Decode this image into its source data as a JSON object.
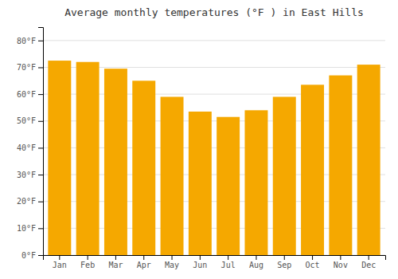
{
  "chart_data": {
    "type": "bar",
    "title": "Average monthly temperatures (°F ) in East Hills",
    "categories": [
      "Jan",
      "Feb",
      "Mar",
      "Apr",
      "May",
      "Jun",
      "Jul",
      "Aug",
      "Sep",
      "Oct",
      "Nov",
      "Dec"
    ],
    "values": [
      72.5,
      72.0,
      69.5,
      65.0,
      59.0,
      53.5,
      51.5,
      54.0,
      59.0,
      63.5,
      67.0,
      71.0
    ],
    "color": "#F5A800",
    "ylim": [
      0,
      85
    ],
    "yticks": [
      {
        "value": 0,
        "label": "0°F"
      },
      {
        "value": 10,
        "label": "10°F"
      },
      {
        "value": 20,
        "label": "20°F"
      },
      {
        "value": 30,
        "label": "30°F"
      },
      {
        "value": 40,
        "label": "40°F"
      },
      {
        "value": 50,
        "label": "50°F"
      },
      {
        "value": 60,
        "label": "60°F"
      },
      {
        "value": 70,
        "label": "70°F"
      },
      {
        "value": 80,
        "label": "80°F"
      }
    ],
    "grid": true
  }
}
